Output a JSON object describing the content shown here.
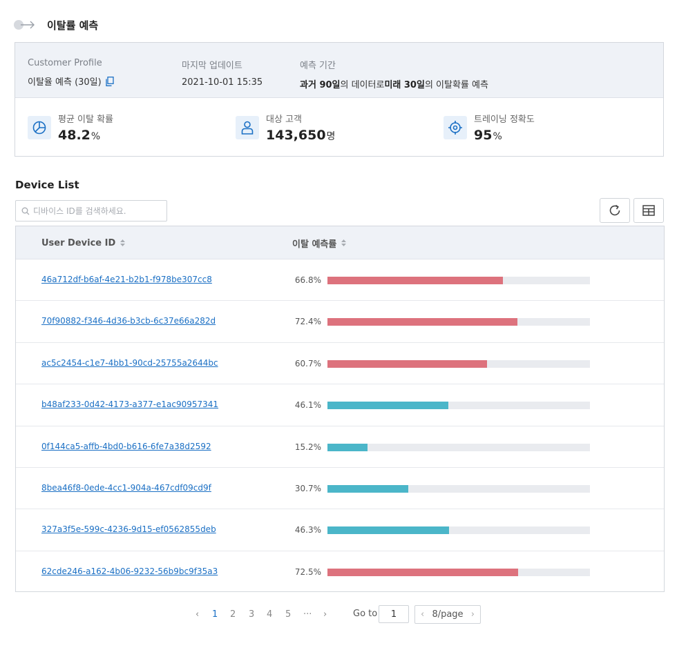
{
  "header": {
    "title": "이탈률 예측"
  },
  "info": {
    "profile_label": "Customer Profile",
    "profile_value": "이탈율 예측 (30일)",
    "updated_label": "마지막 업데이트",
    "updated_value": "2021-10-01 15:35",
    "period_label": "예측 기간",
    "period_parts": [
      "과거 90일",
      "의 데이터로 ",
      "미래 30일",
      "의 이탈확률 예측"
    ]
  },
  "stats": [
    {
      "label": "평균 이탈 확률",
      "value": "48.2",
      "unit": "%",
      "icon": "pie-chart-icon"
    },
    {
      "label": "대상 고객",
      "value": "143,650",
      "unit": "명",
      "icon": "user-icon"
    },
    {
      "label": "트레이닝 정확도",
      "value": "95",
      "unit": "%",
      "icon": "target-icon"
    }
  ],
  "device_list": {
    "title": "Device List",
    "search_placeholder": "디바이스 ID를 검색하세요.",
    "columns": [
      "User Device ID",
      "이탈 예측률"
    ],
    "high_color": "#dd727d",
    "low_color": "#4bb6c9",
    "rows": [
      {
        "id": "46a712df-b6af-4e21-b2b1-f978be307cc8",
        "rate_label": "66.8%",
        "rate": 66.8
      },
      {
        "id": "70f90882-f346-4d36-b3cb-6c37e66a282d",
        "rate_label": "72.4%",
        "rate": 72.4
      },
      {
        "id": "ac5c2454-c1e7-4bb1-90cd-25755a2644bc",
        "rate_label": "60.7%",
        "rate": 60.7
      },
      {
        "id": "b48af233-0d42-4173-a377-e1ac90957341",
        "rate_label": "46.1%",
        "rate": 46.1
      },
      {
        "id": "0f144ca5-affb-4bd0-b616-6fe7a38d2592",
        "rate_label": "15.2%",
        "rate": 15.2
      },
      {
        "id": "8bea46f8-0ede-4cc1-904a-467cdf09cd9f",
        "rate_label": "30.7%",
        "rate": 30.7
      },
      {
        "id": "327a3f5e-599c-4236-9d15-ef0562855deb",
        "rate_label": "46.3%",
        "rate": 46.3
      },
      {
        "id": "62cde246-a162-4b06-9232-56b9bc9f35a3",
        "rate_label": "72.5%",
        "rate": 72.5
      }
    ]
  },
  "pagination": {
    "prev": "‹",
    "next": "›",
    "pages": [
      "1",
      "2",
      "3",
      "4",
      "5",
      "···"
    ],
    "current": "1",
    "goto_label": "Go to",
    "goto_value": "1",
    "page_size": "8/page"
  }
}
